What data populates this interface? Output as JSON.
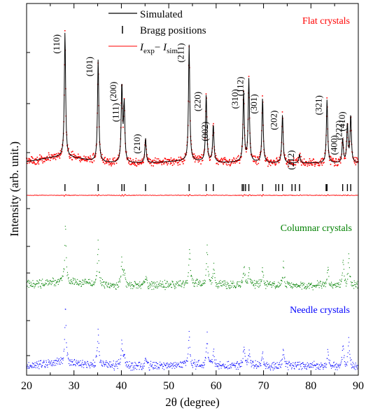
{
  "chart_data": {
    "type": "line",
    "xlabel": "2θ (degree)",
    "ylabel": "Intensity (arb. unit.)",
    "xlim": [
      20,
      90
    ],
    "x_ticks": [
      20,
      30,
      40,
      50,
      60,
      70,
      80,
      90
    ],
    "grid": false,
    "legend": {
      "placement": "top-center",
      "entries": [
        {
          "label": "Simulated",
          "style": "black-line"
        },
        {
          "label": "Bragg positions",
          "style": "tick-mark"
        },
        {
          "label_main": "I",
          "label_sub1": "exp",
          "label_minus": "− ",
          "label_main2": "I",
          "label_sub2": "sim",
          "style": "red-line"
        }
      ]
    },
    "peaks": [
      {
        "label": "(110)",
        "x": 28.1,
        "h": 1.0
      },
      {
        "label": "(101)",
        "x": 35.1,
        "h": 0.82
      },
      {
        "label": "(200)",
        "x": 40.1,
        "h": 0.62
      },
      {
        "label": "(111)",
        "x": 40.6,
        "h": 0.46
      },
      {
        "label": "(210)",
        "x": 45.1,
        "h": 0.2
      },
      {
        "label": "(211)",
        "x": 54.3,
        "h": 0.93
      },
      {
        "label": "(220)",
        "x": 57.9,
        "h": 0.54
      },
      {
        "label": "(002)",
        "x": 59.4,
        "h": 0.3
      },
      {
        "label": "(310)",
        "x": 65.8,
        "h": 0.56
      },
      {
        "label": "(112)",
        "x": 66.9,
        "h": 0.66
      },
      {
        "label": "(301)",
        "x": 69.8,
        "h": 0.52
      },
      {
        "label": "(202)",
        "x": 74.0,
        "h": 0.39
      },
      {
        "label": "(212)",
        "x": 77.6,
        "h": 0.07
      },
      {
        "label": "(321)",
        "x": 83.4,
        "h": 0.51
      },
      {
        "label": "(400)",
        "x": 86.7,
        "h": 0.19
      },
      {
        "label": "(222)",
        "x": 87.7,
        "h": 0.31
      },
      {
        "label": "(410)",
        "x": 88.4,
        "h": 0.38
      }
    ],
    "bragg_positions": [
      28.1,
      35.1,
      40.1,
      40.6,
      45.1,
      54.3,
      57.9,
      59.4,
      65.5,
      65.8,
      66.2,
      66.9,
      69.8,
      72.6,
      73.2,
      74.0,
      76.0,
      76.7,
      77.6,
      83.2,
      83.4,
      86.7,
      87.7,
      88.4
    ],
    "series": [
      {
        "name": "Flat crystals",
        "color": "#ff0000",
        "peaks": [
          {
            "x": 28.1,
            "h": 1.0
          },
          {
            "x": 35.1,
            "h": 0.82
          },
          {
            "x": 40.1,
            "h": 0.62
          },
          {
            "x": 40.6,
            "h": 0.46
          },
          {
            "x": 45.1,
            "h": 0.2
          },
          {
            "x": 54.3,
            "h": 0.93
          },
          {
            "x": 57.9,
            "h": 0.54
          },
          {
            "x": 59.4,
            "h": 0.3
          },
          {
            "x": 65.8,
            "h": 0.56
          },
          {
            "x": 66.9,
            "h": 0.66
          },
          {
            "x": 69.8,
            "h": 0.52
          },
          {
            "x": 74.0,
            "h": 0.39
          },
          {
            "x": 77.6,
            "h": 0.07
          },
          {
            "x": 83.4,
            "h": 0.51
          },
          {
            "x": 86.7,
            "h": 0.19
          },
          {
            "x": 87.7,
            "h": 0.31
          },
          {
            "x": 88.4,
            "h": 0.38
          }
        ]
      },
      {
        "name": "Columnar crystals",
        "color": "#008000",
        "peaks": [
          {
            "x": 28.2,
            "h": 0.8
          },
          {
            "x": 35.1,
            "h": 0.57
          },
          {
            "x": 40.1,
            "h": 0.36
          },
          {
            "x": 40.6,
            "h": 0.22
          },
          {
            "x": 45.2,
            "h": 0.13
          },
          {
            "x": 54.4,
            "h": 0.51
          },
          {
            "x": 58.1,
            "h": 0.55
          },
          {
            "x": 59.5,
            "h": 0.3
          },
          {
            "x": 65.9,
            "h": 0.26
          },
          {
            "x": 67.0,
            "h": 0.22
          },
          {
            "x": 69.8,
            "h": 0.22
          },
          {
            "x": 74.2,
            "h": 0.29
          },
          {
            "x": 83.6,
            "h": 0.26
          },
          {
            "x": 86.8,
            "h": 0.36
          },
          {
            "x": 88.0,
            "h": 0.42
          }
        ]
      },
      {
        "name": "Needle crystals",
        "color": "#0000ff",
        "peaks": [
          {
            "x": 28.2,
            "h": 0.8
          },
          {
            "x": 35.1,
            "h": 0.49
          },
          {
            "x": 40.1,
            "h": 0.33
          },
          {
            "x": 40.6,
            "h": 0.18
          },
          {
            "x": 45.2,
            "h": 0.12
          },
          {
            "x": 54.3,
            "h": 0.45
          },
          {
            "x": 58.1,
            "h": 0.41
          },
          {
            "x": 59.5,
            "h": 0.2
          },
          {
            "x": 65.9,
            "h": 0.25
          },
          {
            "x": 67.0,
            "h": 0.2
          },
          {
            "x": 69.8,
            "h": 0.18
          },
          {
            "x": 74.2,
            "h": 0.25
          },
          {
            "x": 83.6,
            "h": 0.22
          },
          {
            "x": 86.8,
            "h": 0.31
          },
          {
            "x": 88.0,
            "h": 0.35
          }
        ]
      }
    ]
  }
}
